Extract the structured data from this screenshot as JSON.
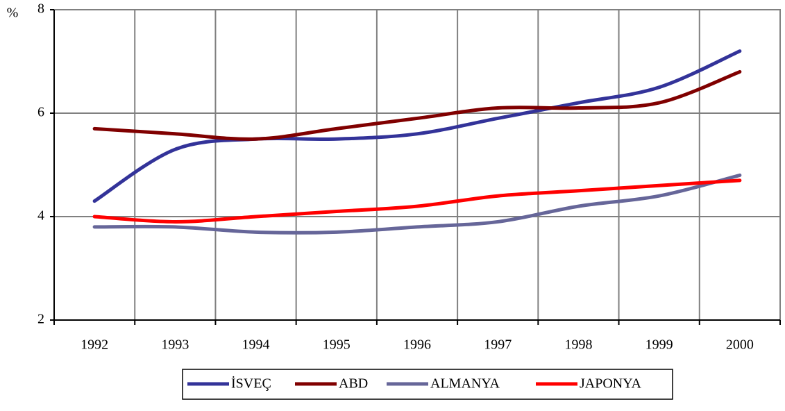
{
  "chart_data": {
    "type": "line",
    "y_label": "%",
    "categories": [
      "1992",
      "1993",
      "1994",
      "1995",
      "1996",
      "1997",
      "1998",
      "1999",
      "2000"
    ],
    "series": [
      {
        "name": "İSVEÇ",
        "color": "#333399",
        "values": [
          4.3,
          5.3,
          5.5,
          5.5,
          5.6,
          5.9,
          6.2,
          6.5,
          7.2
        ]
      },
      {
        "name": "ABD",
        "color": "#800000",
        "values": [
          5.7,
          5.6,
          5.5,
          5.7,
          5.9,
          6.1,
          6.1,
          6.2,
          6.8
        ]
      },
      {
        "name": "ALMANYA",
        "color": "#666699",
        "values": [
          3.8,
          3.8,
          3.7,
          3.7,
          3.8,
          3.9,
          4.2,
          4.4,
          4.8
        ]
      },
      {
        "name": "JAPONYA",
        "color": "#ff0000",
        "values": [
          4.0,
          3.9,
          4.0,
          4.1,
          4.2,
          4.4,
          4.5,
          4.6,
          4.7
        ]
      }
    ],
    "ylim": [
      2,
      8
    ],
    "yticks": [
      2,
      4,
      6,
      8
    ],
    "grid": true,
    "legend": "bottom"
  }
}
